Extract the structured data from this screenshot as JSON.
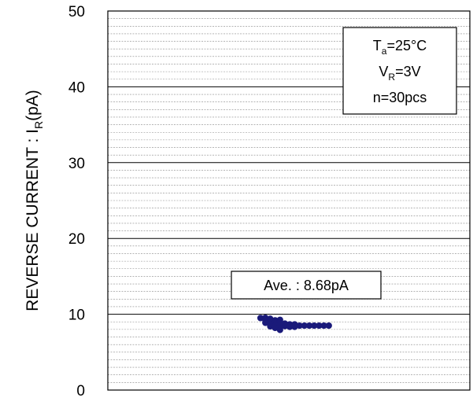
{
  "chart_data": {
    "type": "scatter",
    "title": "",
    "xlabel": "",
    "ylabel": {
      "main": "REVERSE CURRENT : I",
      "sub": "R",
      "unit": "(pA)"
    },
    "ylim": [
      0,
      50
    ],
    "yticks": [
      "0",
      "10",
      "20",
      "30",
      "40",
      "50"
    ],
    "grid": {
      "major_step": 10,
      "minor_step": 1
    },
    "conditions": [
      {
        "main": "T",
        "sub": "a",
        "rest": "=25°C"
      },
      {
        "main": "V",
        "sub": "R",
        "rest": "=3V"
      },
      {
        "main": "n=30pcs",
        "sub": "",
        "rest": ""
      }
    ],
    "annotation": "Ave. : 8.68pA",
    "point_color": "#1a1a7a",
    "series": [
      {
        "values": [
          9.5,
          9.2,
          8.9,
          8.7,
          8.6,
          8.6,
          8.5,
          8.5,
          8.5,
          8.5,
          8.5,
          8.5,
          8.5,
          8.5,
          8.5
        ],
        "counts": [
          1,
          3,
          4,
          4,
          5,
          2,
          2,
          2,
          1,
          1,
          1,
          1,
          1,
          1,
          1
        ]
      }
    ]
  }
}
